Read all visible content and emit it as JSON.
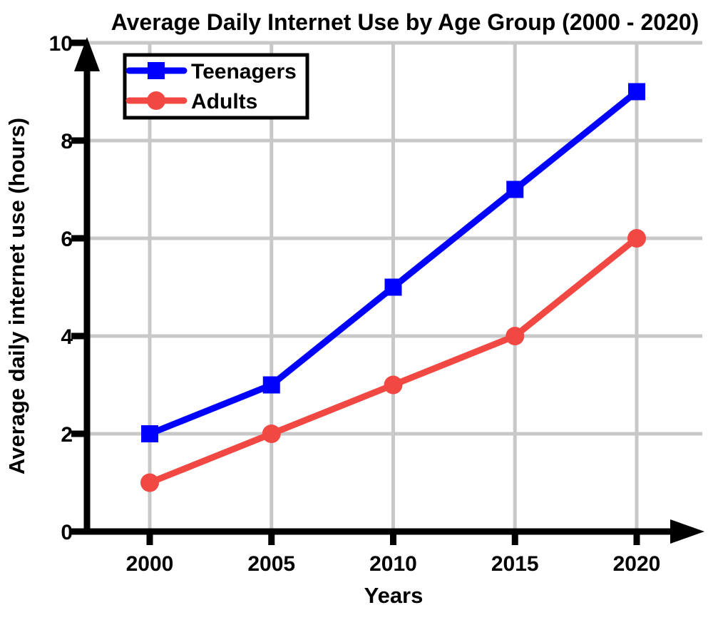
{
  "chart_data": {
    "type": "line",
    "title": "Average Daily Internet Use by Age Group (2000 - 2020)",
    "xlabel": "Years",
    "ylabel": "Average daily internet use (hours)",
    "x": [
      2000,
      2005,
      2010,
      2015,
      2020
    ],
    "x_tick_labels": [
      "2000",
      "2005",
      "2010",
      "2015",
      "2020"
    ],
    "y_ticks": [
      0,
      2,
      4,
      6,
      8,
      10
    ],
    "y_tick_labels": [
      "0",
      "2",
      "4",
      "6",
      "8",
      "10"
    ],
    "xlim": [
      2000,
      2020
    ],
    "ylim": [
      0,
      10
    ],
    "grid": true,
    "legend_position": "top-left",
    "series": [
      {
        "name": "Teenagers",
        "color": "#0000FF",
        "marker": "square",
        "values": [
          2,
          3,
          5,
          7,
          9
        ]
      },
      {
        "name": "Adults",
        "color": "#F24843",
        "marker": "circle",
        "values": [
          1,
          2,
          3,
          4,
          6
        ]
      }
    ],
    "colors": {
      "axis": "#000000",
      "grid": "#C8C8C8",
      "background": "#FFFFFF",
      "text": "#000000"
    }
  }
}
